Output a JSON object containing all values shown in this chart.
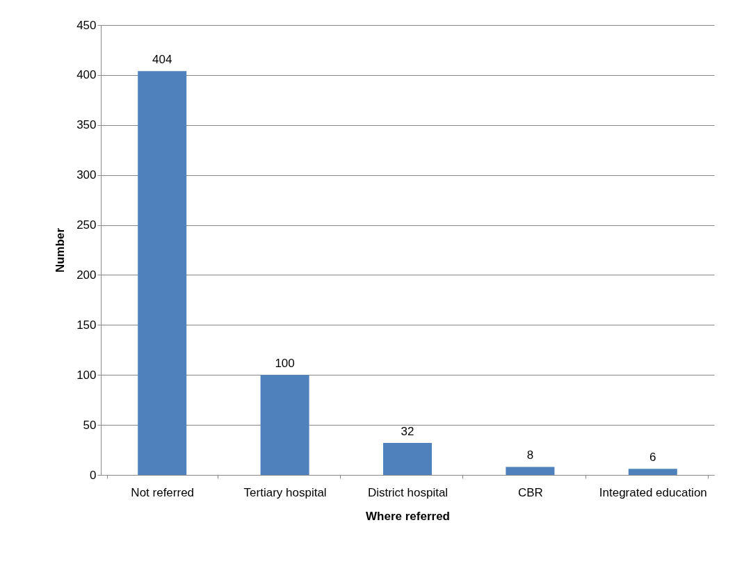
{
  "chart_data": {
    "type": "bar",
    "xlabel": "Where referred",
    "ylabel": "Number",
    "categories": [
      "Not referred",
      "Tertiary hospital",
      "District hospital",
      "CBR",
      "Integrated education"
    ],
    "values": [
      404,
      100,
      32,
      8,
      6
    ],
    "color": "#4f81bd",
    "ylim": [
      0,
      450
    ],
    "yticks": [
      0,
      50,
      100,
      150,
      200,
      250,
      300,
      350,
      400,
      450
    ],
    "grid": "y",
    "data_labels": true
  }
}
